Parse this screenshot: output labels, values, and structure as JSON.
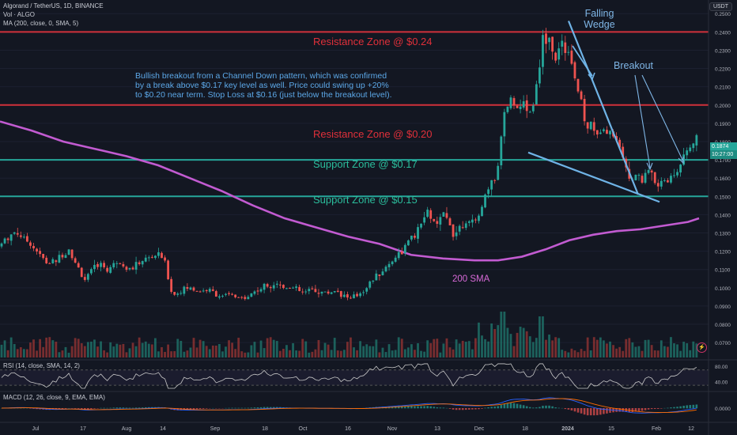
{
  "header": {
    "legend_title": "Algorand / TetherUS, 1D, BINANCE",
    "legend_vol": "Vol · ALGO",
    "legend_ma": "MA (200, close, 0, SMA, 5)",
    "rsi_label": "RSI (14, close, SMA, 14, 2)",
    "macd_label": "MACD (12, 26, close, 9, EMA, EMA)",
    "currency_button": "USDT"
  },
  "current_price": {
    "value": "0.1874",
    "countdown": "10:27:00"
  },
  "annotations": {
    "note_lines": [
      "Bullish breakout from a Channel Down pattern, which was confirmed",
      "by a break above $0.17 key level as well. Price could swing up +20%",
      "to $0.20 near term. Stop Loss at $0.16 (just below the breakout level)."
    ],
    "falling_wedge": [
      "Falling",
      "Wedge"
    ],
    "breakout": "Breakout",
    "sma_label": "200 SMA"
  },
  "zones": [
    {
      "label": "Resistance Zone @ $0.24",
      "price": 0.24,
      "kind": "resistance"
    },
    {
      "label": "Resistance Zone @ $0.20",
      "price": 0.2,
      "kind": "resistance"
    },
    {
      "label": "Support Zone @ $0.17",
      "price": 0.17,
      "kind": "support"
    },
    {
      "label": "Support Zone @ $0.15",
      "price": 0.15,
      "kind": "support"
    }
  ],
  "colors": {
    "bg": "#131722",
    "up": "#26a69a",
    "down": "#ef5350",
    "sma": "#c25bd1",
    "resistance": "#d0313b",
    "support": "#26a69a",
    "wedge": "#6fb3e6",
    "rsi": "#c8c8c8",
    "macd": "#2962ff",
    "signal": "#ff6d00"
  },
  "chart_data": {
    "type": "line",
    "title": "Algorand / TetherUS, 1D, BINANCE",
    "price_axis": {
      "ticks": [
        "0.2500",
        "0.2400",
        "0.2300",
        "0.2200",
        "0.2100",
        "0.2000",
        "0.1900",
        "0.1800",
        "0.1700",
        "0.1600",
        "0.1500",
        "0.1400",
        "0.1300",
        "0.1200",
        "0.1100",
        "0.1000",
        "0.0900",
        "0.0800",
        "0.0700"
      ],
      "ylim": [
        0.064,
        0.254
      ]
    },
    "rsi_axis": {
      "ticks": [
        "80.00",
        "40.00"
      ],
      "ylim": [
        20,
        90
      ]
    },
    "macd_axis": {
      "ticks": [
        "0.0000"
      ]
    },
    "x_ticks": [
      "Jul",
      "17",
      "Aug",
      "14",
      "Sep",
      "18",
      "Oct",
      "16",
      "Nov",
      "13",
      "Dec",
      "18",
      "2024",
      "15",
      "Feb",
      "12"
    ],
    "price_path": [
      [
        0,
        0.123
      ],
      [
        10,
        0.128
      ],
      [
        20,
        0.131
      ],
      [
        30,
        0.127
      ],
      [
        40,
        0.124
      ],
      [
        50,
        0.118
      ],
      [
        60,
        0.113
      ],
      [
        70,
        0.115
      ],
      [
        80,
        0.118
      ],
      [
        88,
        0.122
      ],
      [
        94,
        0.114
      ],
      [
        100,
        0.11
      ],
      [
        106,
        0.104
      ],
      [
        112,
        0.107
      ],
      [
        118,
        0.11
      ],
      [
        124,
        0.113
      ],
      [
        130,
        0.112
      ],
      [
        136,
        0.11
      ],
      [
        142,
        0.112
      ],
      [
        148,
        0.115
      ],
      [
        156,
        0.113
      ],
      [
        165,
        0.11
      ],
      [
        172,
        0.112
      ],
      [
        180,
        0.115
      ],
      [
        188,
        0.116
      ],
      [
        196,
        0.118
      ],
      [
        205,
        0.117
      ],
      [
        210,
        0.112
      ],
      [
        215,
        0.1
      ],
      [
        220,
        0.096
      ],
      [
        228,
        0.098
      ],
      [
        236,
        0.1
      ],
      [
        244,
        0.099
      ],
      [
        254,
        0.098
      ],
      [
        262,
        0.099
      ],
      [
        272,
        0.097
      ],
      [
        282,
        0.095
      ],
      [
        292,
        0.096
      ],
      [
        302,
        0.094
      ],
      [
        312,
        0.095
      ],
      [
        322,
        0.098
      ],
      [
        332,
        0.1
      ],
      [
        342,
        0.102
      ],
      [
        350,
        0.103
      ],
      [
        358,
        0.1
      ],
      [
        366,
        0.101
      ],
      [
        374,
        0.099
      ],
      [
        384,
        0.097
      ],
      [
        394,
        0.099
      ],
      [
        404,
        0.098
      ],
      [
        414,
        0.097
      ],
      [
        424,
        0.099
      ],
      [
        434,
        0.096
      ],
      [
        444,
        0.094
      ],
      [
        452,
        0.096
      ],
      [
        460,
        0.099
      ],
      [
        470,
        0.104
      ],
      [
        480,
        0.108
      ],
      [
        490,
        0.112
      ],
      [
        500,
        0.117
      ],
      [
        510,
        0.121
      ],
      [
        518,
        0.126
      ],
      [
        526,
        0.129
      ],
      [
        534,
        0.136
      ],
      [
        540,
        0.142
      ],
      [
        546,
        0.138
      ],
      [
        552,
        0.133
      ],
      [
        560,
        0.14
      ],
      [
        568,
        0.136
      ],
      [
        574,
        0.129
      ],
      [
        580,
        0.133
      ],
      [
        588,
        0.137
      ],
      [
        596,
        0.134
      ],
      [
        604,
        0.138
      ],
      [
        610,
        0.145
      ],
      [
        614,
        0.15
      ],
      [
        618,
        0.153
      ],
      [
        622,
        0.156
      ],
      [
        626,
        0.16
      ],
      [
        630,
        0.166
      ],
      [
        633,
        0.18
      ],
      [
        637,
        0.196
      ],
      [
        641,
        0.2
      ],
      [
        645,
        0.206
      ],
      [
        648,
        0.198
      ],
      [
        652,
        0.203
      ],
      [
        656,
        0.197
      ],
      [
        660,
        0.201
      ],
      [
        664,
        0.196
      ],
      [
        668,
        0.2
      ],
      [
        672,
        0.198
      ],
      [
        676,
        0.203
      ],
      [
        680,
        0.215
      ],
      [
        684,
        0.228
      ],
      [
        688,
        0.238
      ],
      [
        692,
        0.232
      ],
      [
        696,
        0.236
      ],
      [
        700,
        0.23
      ],
      [
        704,
        0.226
      ],
      [
        708,
        0.232
      ],
      [
        712,
        0.236
      ],
      [
        716,
        0.228
      ],
      [
        720,
        0.233
      ],
      [
        724,
        0.221
      ],
      [
        728,
        0.214
      ],
      [
        732,
        0.206
      ],
      [
        736,
        0.2
      ],
      [
        740,
        0.19
      ],
      [
        744,
        0.185
      ],
      [
        748,
        0.192
      ],
      [
        752,
        0.186
      ],
      [
        756,
        0.18
      ],
      [
        760,
        0.188
      ],
      [
        764,
        0.191
      ],
      [
        768,
        0.185
      ],
      [
        772,
        0.186
      ],
      [
        776,
        0.181
      ],
      [
        780,
        0.183
      ],
      [
        784,
        0.175
      ],
      [
        788,
        0.172
      ],
      [
        792,
        0.168
      ],
      [
        796,
        0.162
      ],
      [
        800,
        0.157
      ],
      [
        804,
        0.16
      ],
      [
        808,
        0.163
      ],
      [
        812,
        0.158
      ],
      [
        816,
        0.162
      ],
      [
        820,
        0.165
      ],
      [
        824,
        0.161
      ],
      [
        828,
        0.158
      ],
      [
        832,
        0.156
      ],
      [
        836,
        0.16
      ],
      [
        840,
        0.157
      ],
      [
        844,
        0.158
      ],
      [
        848,
        0.162
      ],
      [
        852,
        0.161
      ],
      [
        856,
        0.165
      ],
      [
        860,
        0.167
      ],
      [
        864,
        0.17
      ],
      [
        868,
        0.172
      ],
      [
        872,
        0.176
      ],
      [
        876,
        0.179
      ],
      [
        880,
        0.182
      ],
      [
        884,
        0.1874
      ]
    ],
    "sma_200_path": [
      [
        0,
        0.191
      ],
      [
        40,
        0.186
      ],
      [
        80,
        0.18
      ],
      [
        120,
        0.176
      ],
      [
        160,
        0.172
      ],
      [
        200,
        0.167
      ],
      [
        240,
        0.16
      ],
      [
        280,
        0.153
      ],
      [
        320,
        0.145
      ],
      [
        360,
        0.138
      ],
      [
        400,
        0.133
      ],
      [
        440,
        0.128
      ],
      [
        480,
        0.124
      ],
      [
        520,
        0.118
      ],
      [
        560,
        0.116
      ],
      [
        600,
        0.115
      ],
      [
        630,
        0.115
      ],
      [
        660,
        0.117
      ],
      [
        690,
        0.121
      ],
      [
        720,
        0.126
      ],
      [
        750,
        0.129
      ],
      [
        780,
        0.131
      ],
      [
        810,
        0.132
      ],
      [
        840,
        0.134
      ],
      [
        870,
        0.136
      ],
      [
        884,
        0.138
      ]
    ],
    "wedge_lines": {
      "upper": [
        [
          0.246,
          719
        ],
        [
          0.151,
          807
        ]
      ],
      "lower": [
        [
          0.174,
          668
        ],
        [
          0.147,
          834
        ]
      ]
    }
  }
}
